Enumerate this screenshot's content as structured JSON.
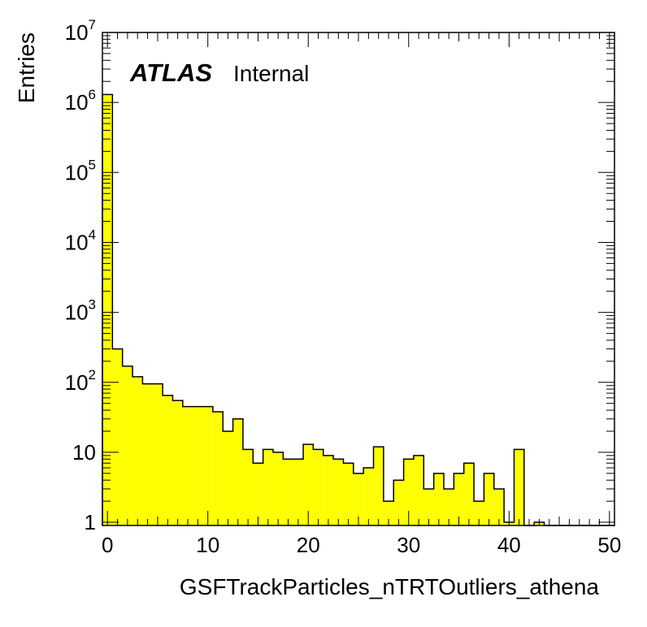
{
  "chart_data": {
    "type": "bar",
    "title": "",
    "xlabel": "GSFTrackParticles_nTRTOutliers_athena",
    "ylabel": "Entries",
    "xlim": [
      -0.5,
      50.5
    ],
    "ylim": [
      0.9,
      10000000
    ],
    "y_scale": "log",
    "bin_width": 1,
    "grid": false,
    "legend": "none",
    "fill_color": "#ffff00",
    "line_color": "#000000",
    "label_bold": "ATLAS",
    "label_text": "Internal",
    "x_ticks": [
      "0",
      "10",
      "20",
      "30",
      "40",
      "50"
    ],
    "y_ticks": [
      {
        "value": 1,
        "base": "1",
        "exp": ""
      },
      {
        "value": 10,
        "base": "10",
        "exp": ""
      },
      {
        "value": 100,
        "base": "10",
        "exp": "2"
      },
      {
        "value": 1000,
        "base": "10",
        "exp": "3"
      },
      {
        "value": 10000,
        "base": "10",
        "exp": "4"
      },
      {
        "value": 100000,
        "base": "10",
        "exp": "5"
      },
      {
        "value": 1000000,
        "base": "10",
        "exp": "6"
      },
      {
        "value": 10000000,
        "base": "10",
        "exp": "7"
      }
    ],
    "bins": [
      0,
      1,
      2,
      3,
      4,
      5,
      6,
      7,
      8,
      9,
      10,
      11,
      12,
      13,
      14,
      15,
      16,
      17,
      18,
      19,
      20,
      21,
      22,
      23,
      24,
      25,
      26,
      27,
      28,
      29,
      30,
      31,
      32,
      33,
      34,
      35,
      36,
      37,
      38,
      39,
      40,
      41,
      42,
      43,
      44,
      45,
      46,
      47,
      48,
      49,
      50
    ],
    "values": [
      1300000,
      300,
      170,
      120,
      95,
      95,
      65,
      55,
      45,
      45,
      45,
      38,
      20,
      30,
      11,
      7,
      11,
      10,
      8,
      8,
      13,
      11,
      9,
      8,
      7,
      5,
      6,
      12,
      2,
      4,
      8,
      9,
      3,
      5,
      3,
      5,
      7,
      2,
      5,
      3,
      1,
      11,
      0,
      1,
      0,
      0,
      0,
      0,
      0,
      0,
      0
    ]
  }
}
